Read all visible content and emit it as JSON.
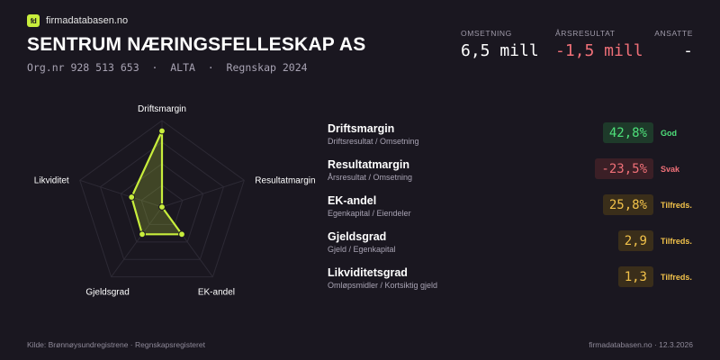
{
  "brand": {
    "logo_text": "fd",
    "name": "firmadatabasen.no",
    "accent": "#c8ee3c"
  },
  "company": {
    "name": "SENTRUM NÆRINGSFELLESKAP AS",
    "subline": "Org.nr 928 513 653  ·  ALTA  ·  Regnskap 2024"
  },
  "kpis": [
    {
      "label": "OMSETNING",
      "value": "6,5 mill"
    },
    {
      "label": "ÅRSRESULTAT",
      "value": "-1,5 mill",
      "color": "#f07078"
    },
    {
      "label": "ANSATTE",
      "value": "-"
    }
  ],
  "radar": {
    "axes": [
      "Driftsmargin",
      "Resultatmargin",
      "EK-andel",
      "Gjeldsgrad",
      "Likviditet"
    ],
    "scores": [
      0.88,
      0.0,
      0.39,
      0.39,
      0.37
    ],
    "rings": 4,
    "stroke_color": "#c8ee3c",
    "fill_color": "rgba(200,238,60,0.22)",
    "grid_color": "#2d2a35"
  },
  "metrics": [
    {
      "name": "Driftsmargin",
      "desc": "Driftsresultat / Omsetning",
      "value": "42,8%",
      "status": "God",
      "level": "good"
    },
    {
      "name": "Resultatmargin",
      "desc": "Årsresultat / Omsetning",
      "value": "-23,5%",
      "status": "Svak",
      "level": "bad"
    },
    {
      "name": "EK-andel",
      "desc": "Egenkapital / Eiendeler",
      "value": "25,8%",
      "status": "Tilfreds.",
      "level": "mid"
    },
    {
      "name": "Gjeldsgrad",
      "desc": "Gjeld / Egenkapital",
      "value": "2,9",
      "status": "Tilfreds.",
      "level": "mid"
    },
    {
      "name": "Likviditetsgrad",
      "desc": "Omløpsmidler / Kortsiktig gjeld",
      "value": "1,3",
      "status": "Tilfreds.",
      "level": "mid"
    }
  ],
  "footer": {
    "source": "Kilde: Brønnøysundregistrene · Regnskapsregisteret",
    "site_date": "firmadatabasen.no · 12.3.2026"
  }
}
